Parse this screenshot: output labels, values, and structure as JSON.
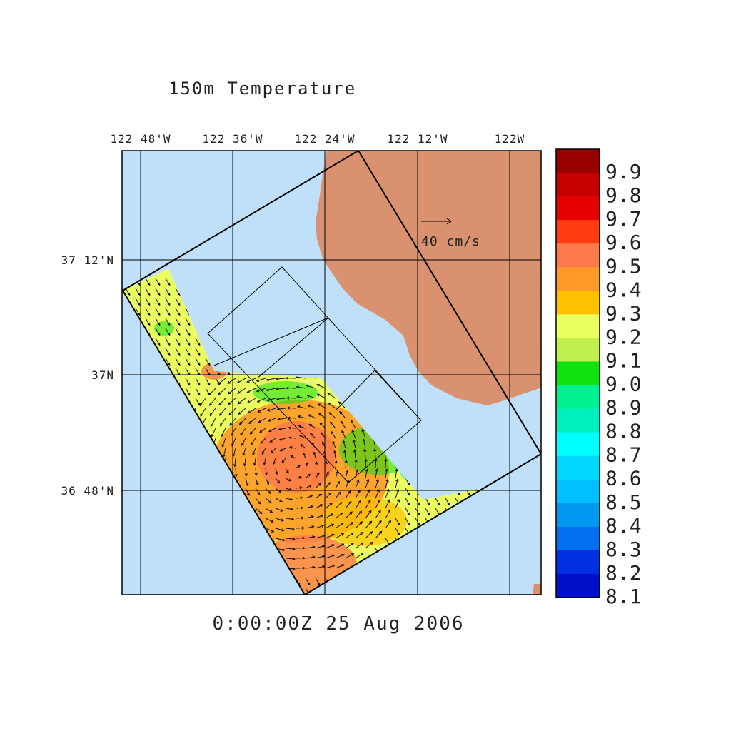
{
  "title": "150m Temperature",
  "timestamp": "0:00:00Z  25 Aug 2006",
  "reference_vector_label": "40 cm/s",
  "longitude_ticks": [
    "122 48'W",
    "122 36'W",
    "122 24'W",
    "122 12'W",
    "122W"
  ],
  "latitude_ticks": [
    "37 12'N",
    "37N",
    "36 48'N"
  ],
  "colorbar": {
    "ticks": [
      "9.9",
      "9.8",
      "9.7",
      "9.6",
      "9.5",
      "9.4",
      "9.3",
      "9.2",
      "9.1",
      "9.0",
      "8.9",
      "8.8",
      "8.7",
      "8.6",
      "8.5",
      "8.4",
      "8.3",
      "8.2",
      "8.1"
    ],
    "colors": [
      "#990000",
      "#c40000",
      "#e60000",
      "#ff3c10",
      "#ff7a4a",
      "#ff9a28",
      "#ffc000",
      "#ecff60",
      "#c0f050",
      "#10e010",
      "#00f090",
      "#00f0c0",
      "#00ffff",
      "#00d8ff",
      "#00c0ff",
      "#0098f0",
      "#0070f0",
      "#0030e0",
      "#0010c8"
    ]
  },
  "colors": {
    "ocean": "#c0e0fa",
    "land": "#d9916f"
  }
}
